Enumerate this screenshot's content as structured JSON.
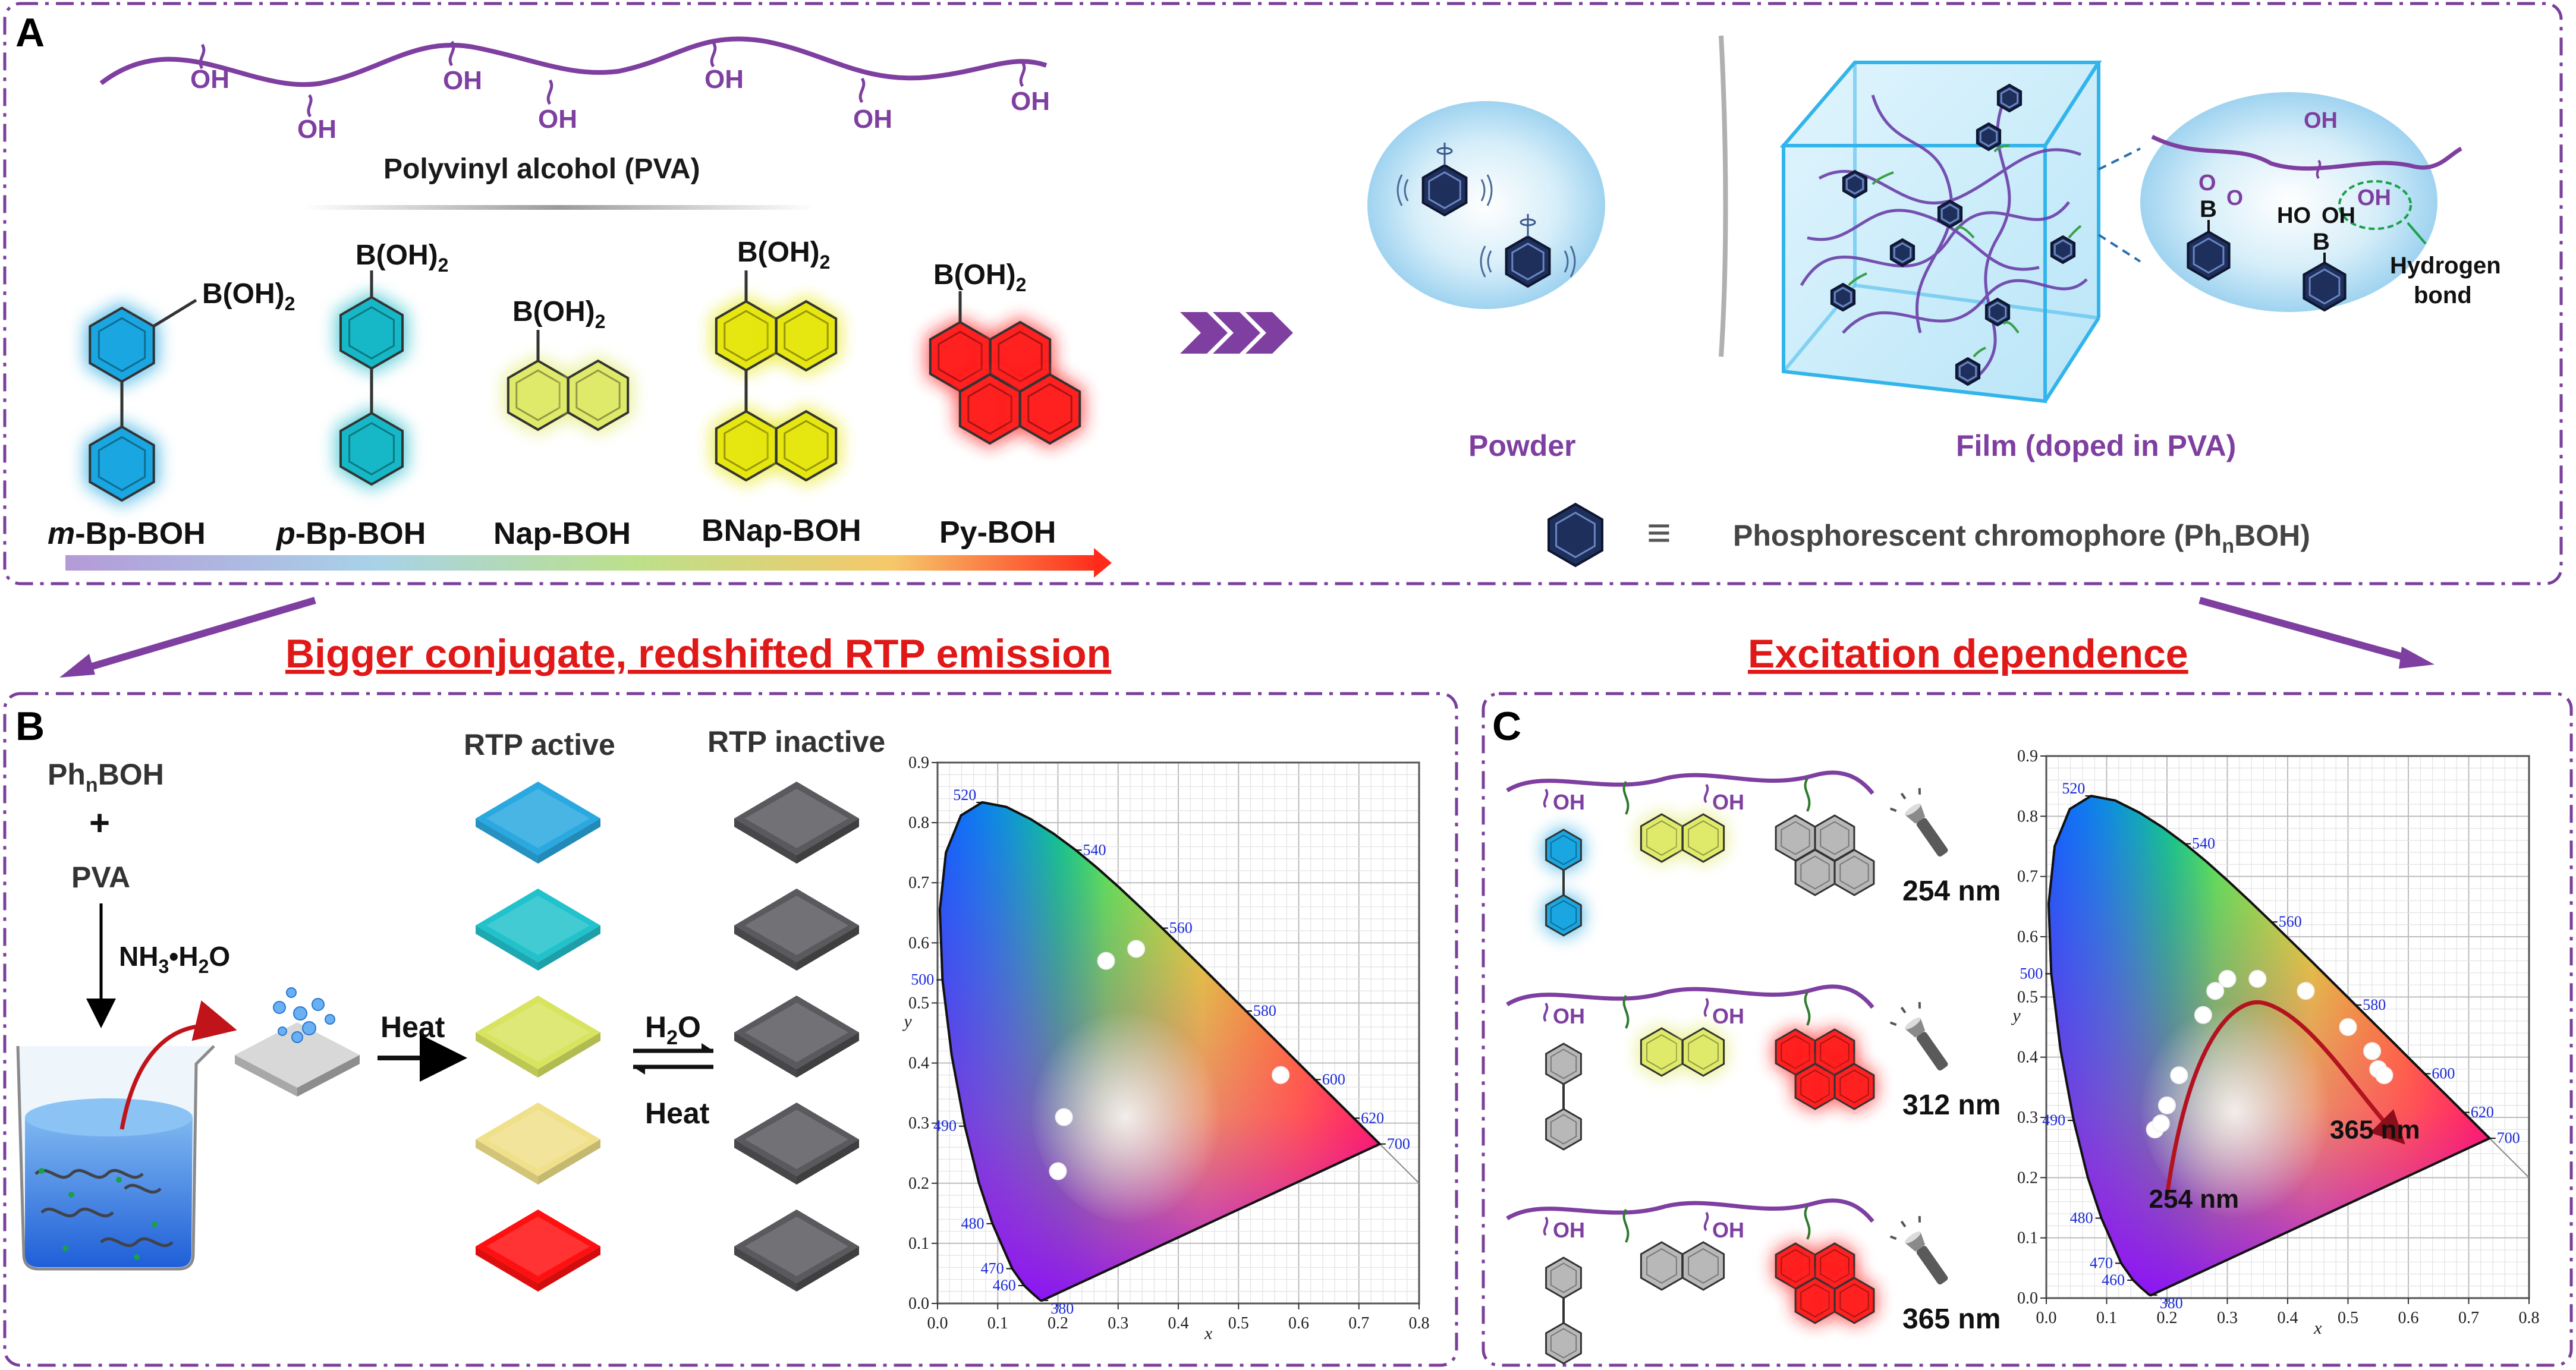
{
  "panel_a": {
    "letter": "A",
    "pva_oh": "OH",
    "pva_label": "Polyvinyl alcohol (PVA)",
    "boh_group": "B(OH)",
    "boh_sub": "2",
    "molecules": [
      {
        "prefix": "m",
        "label": "-Bp-BOH",
        "color": "#1aa6e0"
      },
      {
        "prefix": "p",
        "label": "-Bp-BOH",
        "color": "#16b8c8"
      },
      {
        "prefix": "",
        "label": "Nap-BOH",
        "color": "#e0ea6a"
      },
      {
        "prefix": "",
        "label": "BNap-BOH",
        "color": "#e6e610"
      },
      {
        "prefix": "",
        "label": "Py-BOH",
        "color": "#ff2020"
      }
    ],
    "powder_label": "Powder",
    "film_label": "Film (doped in PVA)",
    "hb_oh": "OH",
    "hb_ho": "HO",
    "hb_o": "O",
    "hb_b": "B",
    "hydrogen_bond_label_1": "Hydrogen",
    "hydrogen_bond_label_2": "bond",
    "equiv_symbol": "≡",
    "chromophore_label": "Phosphorescent chromophore (Ph",
    "chromophore_sub": "n",
    "chromophore_label_end": "BOH)"
  },
  "headings": {
    "left": "Bigger conjugate, redshifted RTP emission",
    "right": "Excitation dependence"
  },
  "panel_b": {
    "letter": "B",
    "reactant1_main": "Ph",
    "reactant1_sub": "n",
    "reactant1_end": "BOH",
    "plus": "+",
    "reactant2": "PVA",
    "reagent_main": "NH",
    "reagent_sub": "3",
    "reagent_mid": "•H",
    "reagent_sub2": "2",
    "reagent_end": "O",
    "heat_label": "Heat",
    "water_main": "H",
    "water_sub": "2",
    "water_end": "O",
    "heat_label_2": "Heat",
    "rtp_active_label": "RTP active",
    "rtp_inactive_label": "RTP inactive",
    "active_colors": [
      "#2aa8e0",
      "#22c2cc",
      "#d8e460",
      "#f0e08a",
      "#ff1010"
    ],
    "inactive_color": "#5a5a5e"
  },
  "panel_c": {
    "letter": "C",
    "oh": "OH",
    "wavelengths": [
      "254 nm",
      "312 nm",
      "365 nm"
    ],
    "arrow_start_label": "254 nm",
    "arrow_end_label": "365 nm"
  },
  "cie_axes": {
    "xlabel": "x",
    "ylabel": "y",
    "x_ticks": [
      "0.0",
      "0.1",
      "0.2",
      "0.3",
      "0.4",
      "0.5",
      "0.6",
      "0.7",
      "0.8"
    ],
    "y_ticks": [
      "0.0",
      "0.1",
      "0.2",
      "0.3",
      "0.4",
      "0.5",
      "0.6",
      "0.7",
      "0.8",
      "0.9"
    ],
    "wavelength_labels": [
      "380",
      "460",
      "470",
      "480",
      "490",
      "500",
      "520",
      "540",
      "560",
      "580",
      "600",
      "620",
      "700"
    ]
  },
  "chart_data": [
    {
      "type": "scatter",
      "title": "",
      "xlabel": "x",
      "ylabel": "y",
      "xlim": [
        0,
        0.8
      ],
      "ylim": [
        0,
        0.9
      ],
      "grid": true,
      "series": [
        {
          "x": [
            0.28,
            0.33,
            0.21,
            0.2,
            0.57
          ],
          "y": [
            0.57,
            0.59,
            0.31,
            0.22,
            0.38
          ]
        }
      ]
    },
    {
      "type": "scatter",
      "title": "",
      "xlabel": "x",
      "ylabel": "y",
      "xlim": [
        0,
        0.8
      ],
      "ylim": [
        0,
        0.9
      ],
      "grid": true,
      "series": [
        {
          "x": [
            0.18,
            0.19,
            0.2,
            0.22,
            0.26,
            0.28,
            0.3,
            0.35,
            0.43,
            0.5,
            0.54,
            0.55,
            0.56
          ],
          "y": [
            0.28,
            0.29,
            0.32,
            0.37,
            0.47,
            0.51,
            0.53,
            0.53,
            0.51,
            0.45,
            0.41,
            0.38,
            0.37
          ]
        }
      ],
      "annotations": [
        "254 nm",
        "365 nm"
      ]
    }
  ]
}
